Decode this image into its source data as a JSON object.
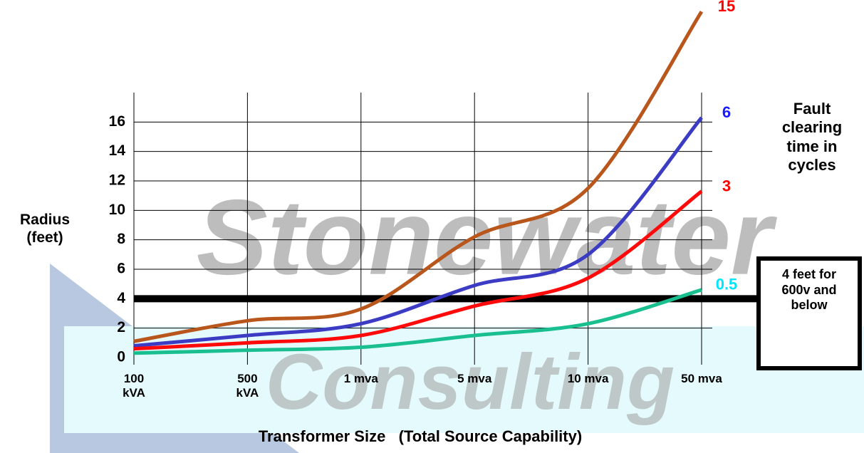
{
  "chart_data": {
    "type": "line",
    "watermark": [
      "Stonewater",
      "Consulting"
    ],
    "ylabel": "Radius (feet)",
    "xlabel": "Transformer Size   (Total Source Capability)",
    "legend_title": "Fault clearing time in cycles",
    "categories": [
      "100 kVA",
      "500 kVA",
      "1 mva",
      "5 mva",
      "10 mva",
      "50 mva"
    ],
    "ylim": [
      0,
      18
    ],
    "yticks": [
      0,
      2,
      4,
      6,
      8,
      10,
      12,
      14,
      16
    ],
    "grid": true,
    "series": [
      {
        "name": "15",
        "color": "#b8561c",
        "label_color": "#ff0000",
        "values": [
          1.1,
          2.5,
          3.3,
          8.2,
          11.5,
          23.5
        ]
      },
      {
        "name": "6",
        "color": "#3b3bc4",
        "label_color": "#1a1aff",
        "values": [
          0.8,
          1.5,
          2.3,
          4.9,
          7.0,
          16.3
        ]
      },
      {
        "name": "3",
        "color": "#ff0a0a",
        "label_color": "#ff0000",
        "values": [
          0.6,
          1.0,
          1.5,
          3.5,
          5.4,
          11.3
        ]
      },
      {
        "name": "0.5",
        "color": "#1abf8f",
        "label_color": "#00e5ff",
        "values": [
          0.3,
          0.5,
          0.7,
          1.5,
          2.3,
          4.6
        ]
      }
    ],
    "threshold": 4,
    "threshold_label": "4 feet for 600v and below"
  }
}
